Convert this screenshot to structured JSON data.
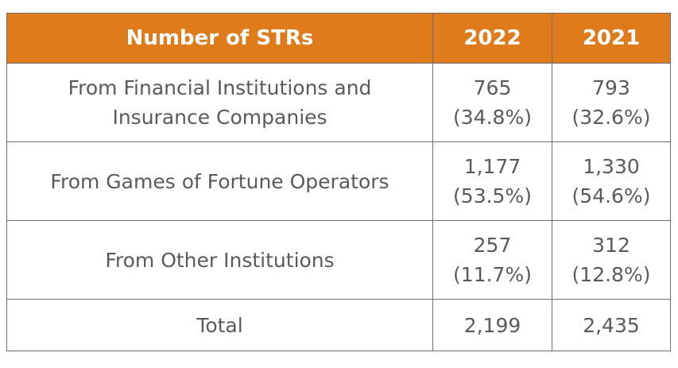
{
  "table": {
    "header": {
      "label": "Number of STRs",
      "year_a": "2022",
      "year_b": "2021"
    },
    "rows": [
      {
        "label_lines": [
          "From Financial Institutions and",
          "Insurance Companies"
        ],
        "y2022": {
          "count": "765",
          "share": "(34.8%)"
        },
        "y2021": {
          "count": "793",
          "share": "(32.6%)"
        }
      },
      {
        "label_lines": [
          "From Games of Fortune Operators"
        ],
        "y2022": {
          "count": "1,177",
          "share": "(53.5%)"
        },
        "y2021": {
          "count": "1,330",
          "share": "(54.6%)"
        }
      },
      {
        "label_lines": [
          "From Other Institutions"
        ],
        "y2022": {
          "count": "257",
          "share": "(11.7%)"
        },
        "y2021": {
          "count": "312",
          "share": "(12.8%)"
        }
      }
    ],
    "total": {
      "label": "Total",
      "y2022": "2,199",
      "y2021": "2,435"
    }
  },
  "colors": {
    "header_background": "#e07b1b",
    "header_text": "#ffffff",
    "body_text": "#5a5a5a",
    "border": "#6f6f6f"
  }
}
